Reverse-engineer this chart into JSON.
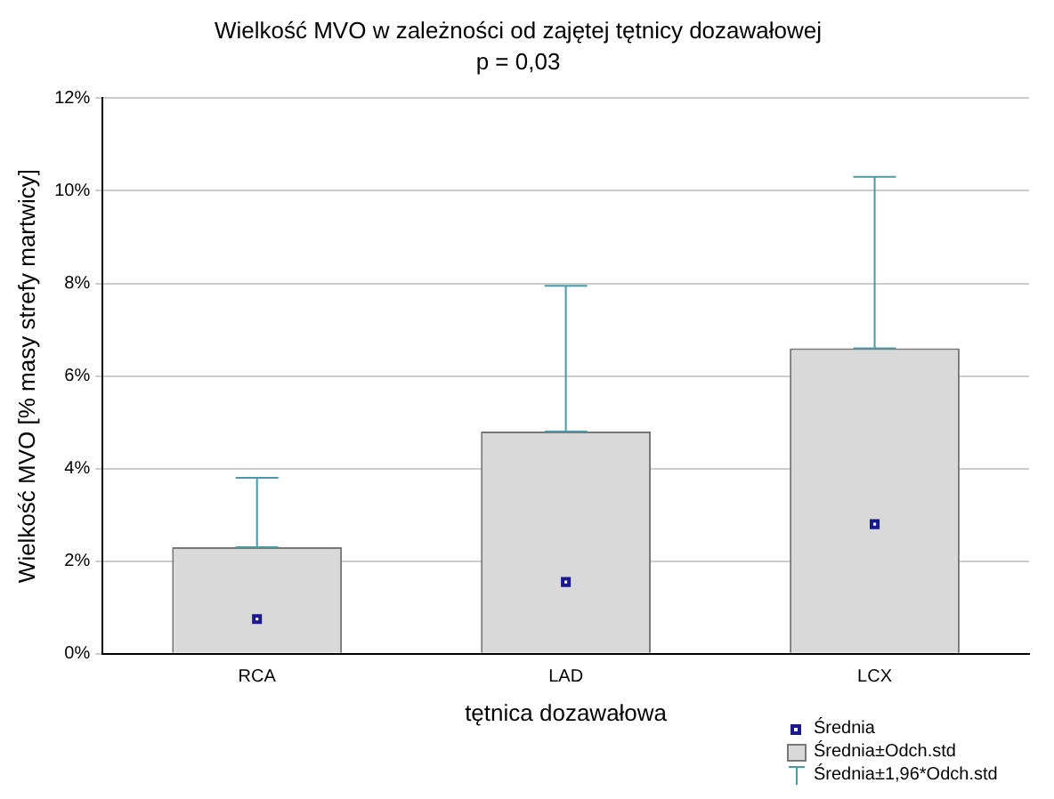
{
  "chart_data": {
    "type": "bar",
    "title": "Wielkość MVO w zależności od zajętej tętnicy dozawałowej",
    "subtitle": "p = 0,03",
    "xlabel": "tętnica dozawałowa",
    "ylabel": "Wielkość MVO [% masy strefy martwicy]",
    "categories": [
      "RCA",
      "LAD",
      "LCX"
    ],
    "series": [
      {
        "name": "Średnia±Odch.std",
        "color": "#d9d9d9",
        "values": [
          2.3,
          4.8,
          6.6
        ],
        "errors": [
          [
            2.3,
            3.8
          ],
          [
            4.8,
            7.95
          ],
          [
            6.6,
            10.3
          ]
        ]
      },
      {
        "name": "Średnia",
        "type": "scatter",
        "color": "#1a1a8c",
        "x": [
          "RCA",
          "LAD",
          "LCX"
        ],
        "values": [
          0.75,
          1.55,
          2.8
        ]
      }
    ],
    "annotations": [
      "Średnia±1,96*Odch.std"
    ],
    "ylim": [
      0,
      12
    ],
    "yticks": [
      {
        "value": 0,
        "label": "0%"
      },
      {
        "value": 2,
        "label": "2%"
      },
      {
        "value": 4,
        "label": "4%"
      },
      {
        "value": 6,
        "label": "6%"
      },
      {
        "value": 8,
        "label": "8%"
      },
      {
        "value": 10,
        "label": "10%"
      },
      {
        "value": 12,
        "label": "12%"
      }
    ],
    "grid": "y",
    "legend": "bottom right",
    "marker": "square"
  }
}
